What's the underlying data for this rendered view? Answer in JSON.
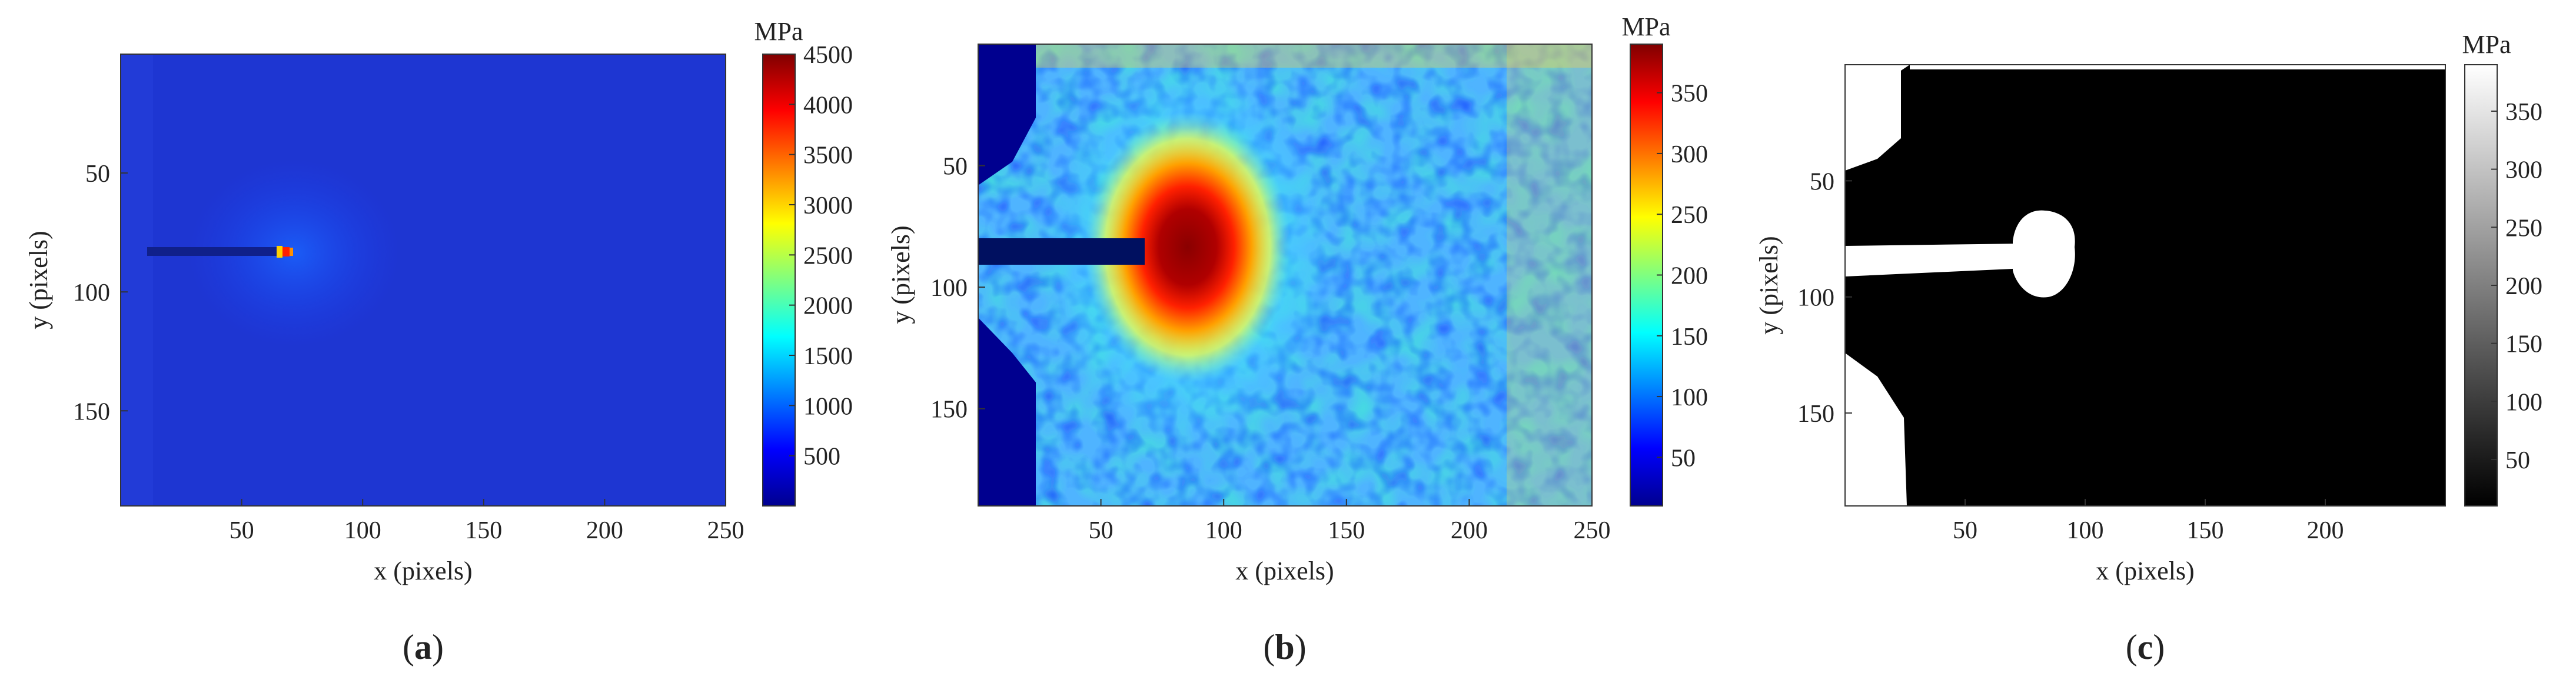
{
  "figure": {
    "panel_labels": [
      "a",
      "b",
      "c"
    ]
  },
  "chart_data": [
    {
      "type": "heatmap",
      "panel": "a",
      "xlabel": "x (pixels)",
      "ylabel": "y (pixels)",
      "xlim": [
        0,
        250
      ],
      "ylim": [
        190,
        0
      ],
      "y_reversed": true,
      "xticks": [
        50,
        100,
        150,
        200,
        250
      ],
      "yticks": [
        50,
        100,
        150
      ],
      "colorbar": {
        "colormap": "jet",
        "unit": "MPa",
        "range": [
          0,
          4500
        ],
        "ticks": [
          500,
          1000,
          1500,
          2000,
          2500,
          3000,
          3500,
          4000,
          4500
        ]
      },
      "features": {
        "background_value_MPa": 400,
        "crack": {
          "x_start": 15,
          "x_end": 74,
          "y": 84
        },
        "crack_tip_peak": {
          "x": 74,
          "y": 84,
          "value_MPa": 4500
        }
      }
    },
    {
      "type": "heatmap",
      "panel": "b",
      "xlabel": "x (pixels)",
      "ylabel": "y (pixels)",
      "xlim": [
        0,
        250
      ],
      "ylim": [
        190,
        0
      ],
      "y_reversed": true,
      "xticks": [
        50,
        100,
        150,
        200,
        250
      ],
      "yticks": [
        50,
        100,
        150
      ],
      "colorbar": {
        "colormap": "jet",
        "unit": "MPa",
        "range": [
          10,
          390
        ],
        "ticks": [
          50,
          100,
          150,
          200,
          250,
          300,
          350
        ]
      },
      "features": {
        "crack": {
          "x_start": 0,
          "x_end": 70,
          "y": 83
        },
        "plastic_zone": {
          "cx": 90,
          "cy": 87,
          "value_MPa": 390
        },
        "masked_region": {
          "x_max": 25
        }
      }
    },
    {
      "type": "heatmap",
      "panel": "c",
      "xlabel": "x (pixels)",
      "ylabel": "y (pixels)",
      "xlim": [
        0,
        250
      ],
      "ylim": [
        190,
        0
      ],
      "y_reversed": true,
      "xticks": [
        50,
        100,
        150,
        200
      ],
      "yticks": [
        50,
        100,
        150
      ],
      "colorbar": {
        "colormap": "gray",
        "unit": "MPa",
        "range": [
          10,
          390
        ],
        "ticks": [
          50,
          100,
          150,
          200,
          250,
          300,
          350
        ]
      },
      "features": {
        "binary": true,
        "crack": {
          "x_start": 0,
          "x_end": 70,
          "y": 83
        },
        "plastic_zone": {
          "cx": 84,
          "cy": 83
        }
      }
    }
  ]
}
